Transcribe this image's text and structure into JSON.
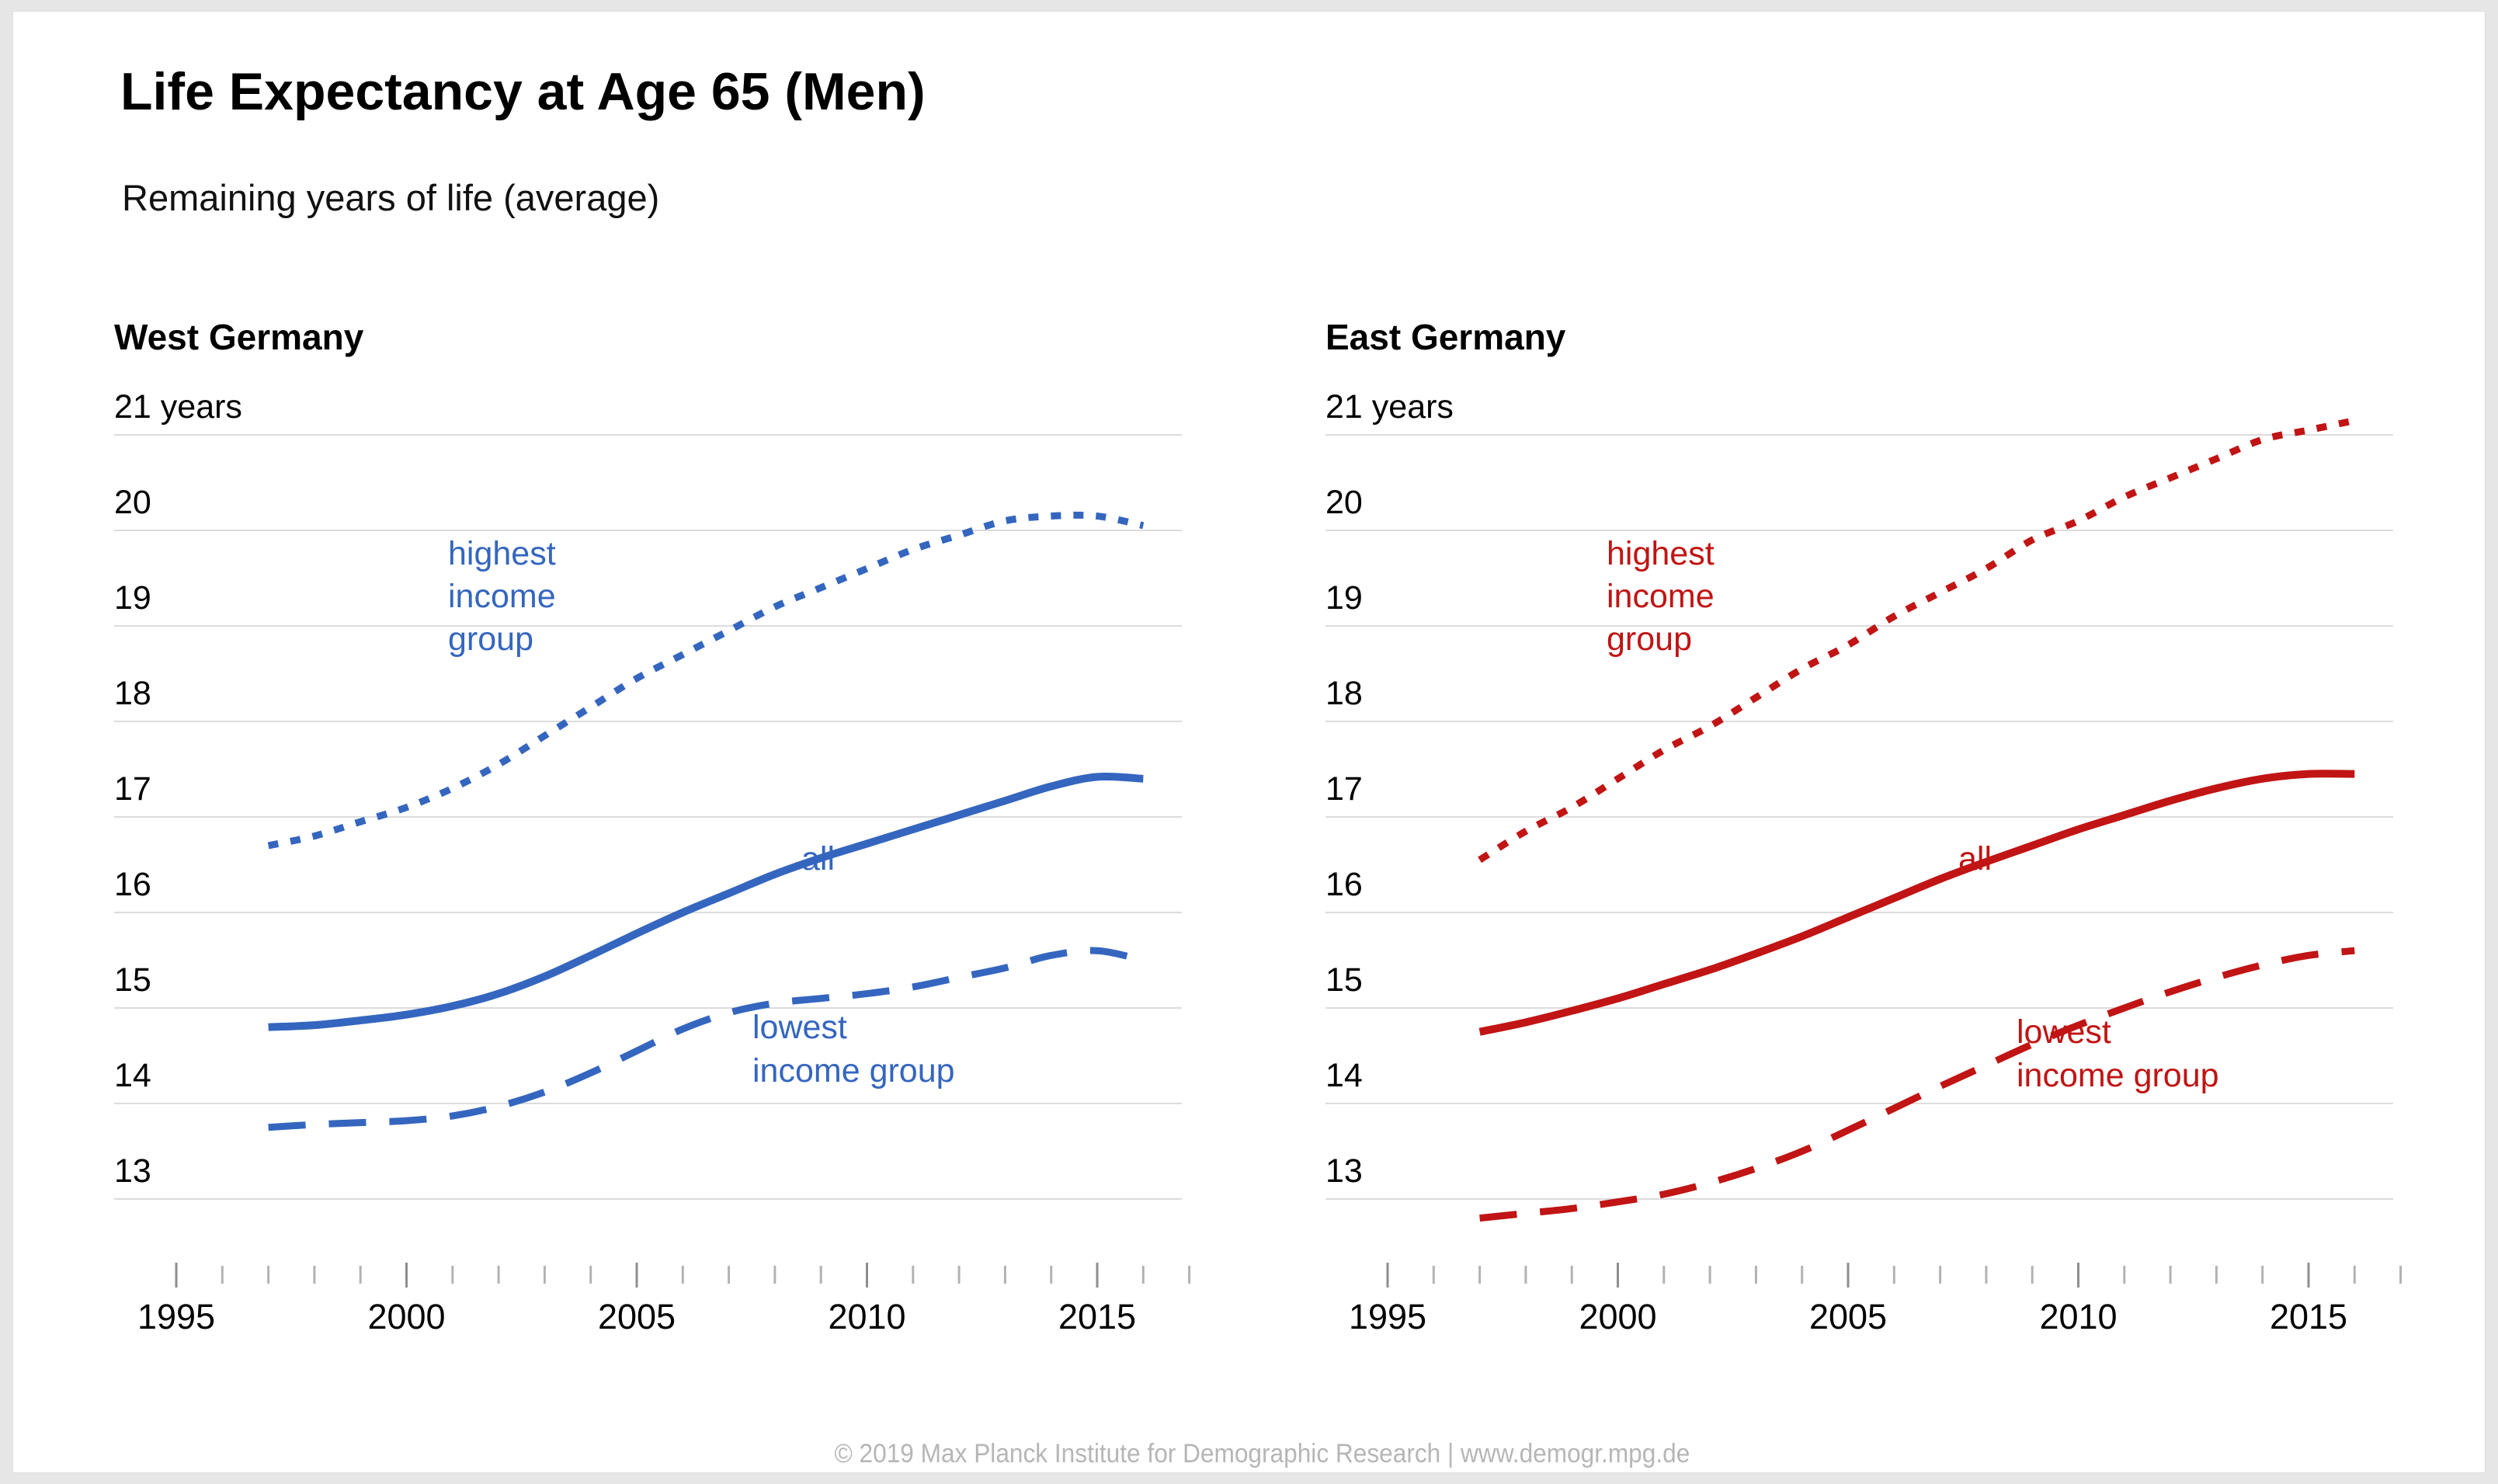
{
  "header": {
    "title": "Life Expectancy at Age 65 (Men)",
    "subtitle": "Remaining years of life (average)"
  },
  "footer": {
    "text": "© 2019 Max Planck Institute for Demographic Research | www.demogr.mpg.de"
  },
  "colors": {
    "west_accent": "#3566BF",
    "east_accent": "#C11414",
    "gridline": "#DCDCDC",
    "tick_minor": "#B2B2B2",
    "tick_major": "#8E8E8E",
    "axis_text": "#000000",
    "footer_text": "#B6B6B6",
    "background": "#E6E6E6",
    "card": "#FFFFFF"
  },
  "axis": {
    "y_unit_suffix": "years",
    "y_ticks": [
      {
        "value": 21,
        "label": "21 years"
      },
      {
        "value": 20,
        "label": "20"
      },
      {
        "value": 19,
        "label": "19"
      },
      {
        "value": 18,
        "label": "18"
      },
      {
        "value": 17,
        "label": "17"
      },
      {
        "value": 16,
        "label": "16"
      },
      {
        "value": 15,
        "label": "15"
      },
      {
        "value": 14,
        "label": "14"
      },
      {
        "value": 13,
        "label": "13"
      }
    ],
    "x_ticks": [
      {
        "year": 1995,
        "label": "1995"
      },
      {
        "year": 1996,
        "label": ""
      },
      {
        "year": 1997,
        "label": ""
      },
      {
        "year": 1998,
        "label": ""
      },
      {
        "year": 1999,
        "label": ""
      },
      {
        "year": 2000,
        "label": "2000"
      },
      {
        "year": 2001,
        "label": ""
      },
      {
        "year": 2002,
        "label": ""
      },
      {
        "year": 2003,
        "label": ""
      },
      {
        "year": 2004,
        "label": ""
      },
      {
        "year": 2005,
        "label": "2005"
      },
      {
        "year": 2006,
        "label": ""
      },
      {
        "year": 2007,
        "label": ""
      },
      {
        "year": 2008,
        "label": ""
      },
      {
        "year": 2009,
        "label": ""
      },
      {
        "year": 2010,
        "label": "2010"
      },
      {
        "year": 2011,
        "label": ""
      },
      {
        "year": 2012,
        "label": ""
      },
      {
        "year": 2013,
        "label": ""
      },
      {
        "year": 2014,
        "label": ""
      },
      {
        "year": 2015,
        "label": "2015"
      },
      {
        "year": 2016,
        "label": ""
      },
      {
        "year": 2017,
        "label": ""
      }
    ]
  },
  "chart_data": [
    {
      "type": "line",
      "title": "West Germany",
      "color": "#3566BF",
      "xlabel": "",
      "ylabel": "years",
      "xlim": [
        1995,
        2017
      ],
      "ylim": [
        13,
        21
      ],
      "grid": true,
      "legend_position": "inline",
      "x": [
        1997,
        1998,
        1999,
        2000,
        2001,
        2002,
        2003,
        2004,
        2005,
        2006,
        2007,
        2008,
        2009,
        2010,
        2011,
        2012,
        2013,
        2014,
        2015,
        2016
      ],
      "series": [
        {
          "name": "highest income group",
          "style": "dotted",
          "values": [
            16.7,
            16.8,
            16.95,
            17.1,
            17.3,
            17.55,
            17.85,
            18.15,
            18.45,
            18.7,
            18.95,
            19.2,
            19.4,
            19.6,
            19.8,
            19.95,
            20.1,
            20.15,
            20.15,
            20.05
          ]
        },
        {
          "name": "all",
          "style": "solid",
          "values": [
            14.8,
            14.82,
            14.87,
            14.93,
            15.02,
            15.15,
            15.33,
            15.55,
            15.78,
            16.0,
            16.2,
            16.4,
            16.57,
            16.72,
            16.87,
            17.02,
            17.17,
            17.32,
            17.42,
            17.4
          ]
        },
        {
          "name": "lowest income group",
          "style": "dashed",
          "values": [
            13.75,
            13.78,
            13.8,
            13.82,
            13.87,
            13.97,
            14.12,
            14.32,
            14.55,
            14.78,
            14.95,
            15.05,
            15.1,
            15.15,
            15.22,
            15.32,
            15.42,
            15.55,
            15.6,
            15.5
          ]
        }
      ],
      "inline_labels": [
        {
          "series": "highest income group",
          "lines": [
            "highest",
            "income",
            "group"
          ],
          "x": 460,
          "y": 352,
          "line_height": 55
        },
        {
          "series": "all",
          "lines": [
            "all"
          ],
          "x": 915,
          "y": 745,
          "line_height": 55
        },
        {
          "series": "lowest income group",
          "lines": [
            "lowest",
            "income group"
          ],
          "x": 852,
          "y": 962,
          "line_height": 56
        }
      ]
    },
    {
      "type": "line",
      "title": "East Germany",
      "color": "#C11414",
      "xlabel": "",
      "ylabel": "years",
      "xlim": [
        1995,
        2017
      ],
      "ylim": [
        13,
        21
      ],
      "grid": true,
      "legend_position": "inline",
      "x": [
        1997,
        1998,
        1999,
        2000,
        2001,
        2002,
        2003,
        2004,
        2005,
        2006,
        2007,
        2008,
        2009,
        2010,
        2011,
        2012,
        2013,
        2014,
        2015,
        2016
      ],
      "series": [
        {
          "name": "highest income group",
          "style": "dotted",
          "values": [
            16.55,
            16.85,
            17.1,
            17.4,
            17.7,
            17.95,
            18.25,
            18.55,
            18.8,
            19.1,
            19.35,
            19.6,
            19.9,
            20.1,
            20.35,
            20.55,
            20.75,
            20.95,
            21.05,
            21.15
          ]
        },
        {
          "name": "all",
          "style": "solid",
          "values": [
            14.75,
            14.85,
            14.97,
            15.1,
            15.25,
            15.4,
            15.57,
            15.75,
            15.95,
            16.15,
            16.35,
            16.53,
            16.7,
            16.87,
            17.02,
            17.17,
            17.3,
            17.4,
            17.45,
            17.45
          ]
        },
        {
          "name": "lowest income group",
          "style": "dashed",
          "values": [
            12.8,
            12.85,
            12.9,
            12.97,
            13.05,
            13.17,
            13.32,
            13.5,
            13.72,
            13.95,
            14.18,
            14.4,
            14.62,
            14.82,
            15.0,
            15.17,
            15.32,
            15.45,
            15.55,
            15.6
          ]
        }
      ],
      "inline_labels": [
        {
          "series": "highest income group",
          "lines": [
            "highest",
            "income",
            "group"
          ],
          "x": 392,
          "y": 352,
          "line_height": 55
        },
        {
          "series": "all",
          "lines": [
            "all"
          ],
          "x": 845,
          "y": 745,
          "line_height": 55
        },
        {
          "series": "lowest income group",
          "lines": [
            "lowest",
            "income group"
          ],
          "x": 920,
          "y": 968,
          "line_height": 56
        }
      ]
    }
  ]
}
